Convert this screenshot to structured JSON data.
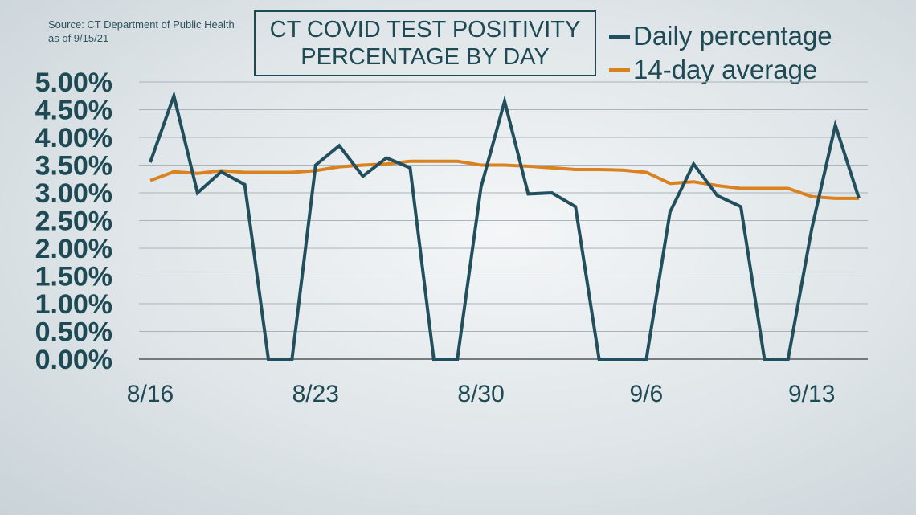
{
  "source": {
    "line1": "Source: CT Department of Public Health",
    "line2": "as of 9/15/21"
  },
  "title": {
    "line1": "CT COVID TEST POSITIVITY",
    "line2": "PERCENTAGE BY DAY"
  },
  "colors": {
    "daily": "#214f5e",
    "average": "#d9821f",
    "grid": "#a9b4b9",
    "text": "#1e4a55"
  },
  "chart_data": {
    "type": "line",
    "title": "CT COVID TEST POSITIVITY PERCENTAGE BY DAY",
    "xlabel": "",
    "ylabel": "",
    "ylim": [
      0,
      5
    ],
    "yticks": [
      "0.00%",
      "0.50%",
      "1.00%",
      "1.50%",
      "2.00%",
      "2.50%",
      "3.00%",
      "3.50%",
      "4.00%",
      "4.50%",
      "5.00%"
    ],
    "xticks": [
      "8/16",
      "8/23",
      "8/30",
      "9/6",
      "9/13"
    ],
    "xtick_index": [
      0,
      7,
      14,
      21,
      28
    ],
    "grid": true,
    "legend_position": "top-right",
    "x": [
      "8/16",
      "8/17",
      "8/18",
      "8/19",
      "8/20",
      "8/21",
      "8/22",
      "8/23",
      "8/24",
      "8/25",
      "8/26",
      "8/27",
      "8/28",
      "8/29",
      "8/30",
      "8/31",
      "9/1",
      "9/2",
      "9/3",
      "9/4",
      "9/5",
      "9/6",
      "9/7",
      "9/8",
      "9/9",
      "9/10",
      "9/11",
      "9/12",
      "9/13",
      "9/14",
      "9/15"
    ],
    "series": [
      {
        "name": "Daily percentage",
        "values": [
          3.55,
          4.75,
          3.0,
          3.38,
          3.15,
          0,
          0,
          3.5,
          3.85,
          3.3,
          3.63,
          3.45,
          0,
          0,
          3.1,
          4.65,
          2.98,
          3.0,
          2.75,
          0,
          0,
          0,
          2.65,
          3.52,
          2.95,
          2.75,
          0,
          0,
          2.35,
          4.22,
          2.9
        ]
      },
      {
        "name": "14-day average",
        "values": [
          3.22,
          3.38,
          3.35,
          3.4,
          3.37,
          3.37,
          3.37,
          3.4,
          3.47,
          3.5,
          3.52,
          3.57,
          3.57,
          3.57,
          3.5,
          3.5,
          3.48,
          3.45,
          3.42,
          3.42,
          3.41,
          3.37,
          3.17,
          3.2,
          3.13,
          3.08,
          3.08,
          3.08,
          2.93,
          2.9,
          2.9
        ]
      }
    ]
  }
}
